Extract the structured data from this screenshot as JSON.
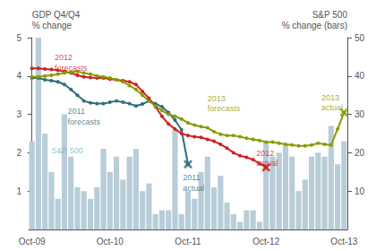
{
  "chart_data": {
    "type": "line",
    "ylabel": "GDP Q4/Q4\n% change",
    "y2label": "S&P 500\n% change (bars)",
    "categories": [
      "Oct-09",
      null,
      null,
      null,
      null,
      null,
      null,
      null,
      null,
      null,
      null,
      null,
      "Oct-10",
      null,
      null,
      null,
      null,
      null,
      null,
      null,
      null,
      null,
      null,
      null,
      "Oct-11",
      null,
      null,
      null,
      null,
      null,
      null,
      null,
      null,
      null,
      null,
      null,
      "Oct-12",
      null,
      null,
      null,
      null,
      null,
      null,
      null,
      null,
      null,
      null,
      null,
      "Oct-13"
    ],
    "ylim": [
      0,
      5
    ],
    "yticks": [
      1,
      2,
      3,
      4,
      5
    ],
    "y2lim": [
      0,
      50
    ],
    "y2ticks": [
      10,
      20,
      30,
      40,
      50
    ],
    "grid": false,
    "series": [
      {
        "type": "bar",
        "axis": "y2",
        "color": "#b8cdd8",
        "values": [
          23,
          50,
          25,
          15,
          8,
          30,
          19,
          11,
          10,
          8,
          11,
          21,
          15,
          19,
          13,
          19,
          21,
          10,
          12,
          4,
          5,
          5,
          26,
          4,
          10,
          8,
          15,
          19,
          11,
          14,
          7,
          4,
          2,
          5,
          5,
          2,
          23,
          19,
          20,
          22,
          19,
          10,
          13,
          19,
          20,
          19,
          27,
          17,
          23
        ]
      },
      {
        "type": "line",
        "marker": "o",
        "color": "#2e6e7e",
        "values": [
          3.95,
          3.95,
          3.9,
          3.88,
          3.85,
          3.78,
          3.65,
          3.5,
          3.35,
          3.3,
          3.28,
          3.28,
          3.32,
          3.35,
          3.32,
          3.28,
          3.22,
          3.27,
          3.35,
          3.28,
          3.2,
          3.05,
          2.85,
          2.6,
          1.7,
          null,
          null,
          null,
          null,
          null,
          null,
          null,
          null,
          null,
          null,
          null,
          null,
          null,
          null,
          null,
          null,
          null,
          null,
          null,
          null,
          null,
          null,
          null,
          null
        ]
      },
      {
        "type": "line",
        "marker": "o",
        "color": "#cc2222",
        "values": [
          4.2,
          4.2,
          4.18,
          4.17,
          4.15,
          4.12,
          4.08,
          4.02,
          3.98,
          3.96,
          3.95,
          3.95,
          3.92,
          3.9,
          3.88,
          3.85,
          3.78,
          3.6,
          3.42,
          3.2,
          2.95,
          2.75,
          2.62,
          2.5,
          2.45,
          2.42,
          2.4,
          2.35,
          2.3,
          2.22,
          2.12,
          2.0,
          1.92,
          1.88,
          1.82,
          1.72,
          1.62,
          null,
          null,
          null,
          null,
          null,
          null,
          null,
          null,
          null,
          null,
          null,
          null
        ]
      },
      {
        "type": "line",
        "marker": "o",
        "color": "#8a9a00",
        "values": [
          3.98,
          3.98,
          4.0,
          4.02,
          4.05,
          4.08,
          4.1,
          4.12,
          4.08,
          4.05,
          4.0,
          3.98,
          3.95,
          3.9,
          3.85,
          3.75,
          3.65,
          3.5,
          3.35,
          3.22,
          3.1,
          3.0,
          2.95,
          2.88,
          2.78,
          2.72,
          2.68,
          2.65,
          2.55,
          2.48,
          2.45,
          2.45,
          2.42,
          2.38,
          2.35,
          2.32,
          2.28,
          2.28,
          2.25,
          2.22,
          2.2,
          2.18,
          2.18,
          2.2,
          2.25,
          2.22,
          2.2,
          2.62,
          3.05
        ]
      },
      {
        "type": "scatter",
        "marker": "x",
        "color": "#2e6e7e",
        "values": [
          null,
          null,
          null,
          null,
          null,
          null,
          null,
          null,
          null,
          null,
          null,
          null,
          null,
          null,
          null,
          null,
          null,
          null,
          null,
          null,
          null,
          null,
          null,
          null,
          1.7,
          null,
          null,
          null,
          null,
          null,
          null,
          null,
          null,
          null,
          null,
          null,
          null,
          null,
          null,
          null,
          null,
          null,
          null,
          null,
          null,
          null,
          null,
          null,
          null
        ]
      },
      {
        "type": "scatter",
        "marker": "x",
        "color": "#cc2222",
        "values": [
          null,
          null,
          null,
          null,
          null,
          null,
          null,
          null,
          null,
          null,
          null,
          null,
          null,
          null,
          null,
          null,
          null,
          null,
          null,
          null,
          null,
          null,
          null,
          null,
          null,
          null,
          null,
          null,
          null,
          null,
          null,
          null,
          null,
          null,
          null,
          null,
          1.62,
          null,
          null,
          null,
          null,
          null,
          null,
          null,
          null,
          null,
          null,
          null,
          null
        ]
      },
      {
        "type": "scatter",
        "marker": "x",
        "color": "#8a9a00",
        "values": [
          null,
          null,
          null,
          null,
          null,
          null,
          null,
          null,
          null,
          null,
          null,
          null,
          null,
          null,
          null,
          null,
          null,
          null,
          null,
          null,
          null,
          null,
          null,
          null,
          null,
          null,
          null,
          null,
          null,
          null,
          null,
          null,
          null,
          null,
          null,
          null,
          null,
          null,
          null,
          null,
          null,
          null,
          null,
          null,
          null,
          null,
          null,
          null,
          3.05
        ]
      }
    ],
    "annotations": [
      {
        "text": "2012",
        "x": 3.5,
        "y": 4.58,
        "color": "#cc2222"
      },
      {
        "text": "forecasts",
        "x": 3.5,
        "y": 4.32,
        "color": "#cc2222"
      },
      {
        "text": "2011",
        "x": 5.5,
        "y": 3.18,
        "color": "#2e6e7e"
      },
      {
        "text": "forecasts",
        "x": 5.5,
        "y": 2.92,
        "color": "#2e6e7e"
      },
      {
        "text": "2013",
        "x": 27,
        "y": 3.52,
        "color": "#8a9a00"
      },
      {
        "text": "forecasts",
        "x": 27,
        "y": 3.26,
        "color": "#8a9a00"
      },
      {
        "text": "S&P 500",
        "x": 3,
        "y": 2.15,
        "color": "#7ab0c0"
      },
      {
        "text": "2011",
        "x": 23.2,
        "y": 1.45,
        "color": "#2e6e7e"
      },
      {
        "text": "actual",
        "x": 23.2,
        "y": 1.19,
        "color": "#2e6e7e"
      },
      {
        "text": "2012",
        "x": 34.5,
        "y": 2.1,
        "color": "#cc2222"
      },
      {
        "text": "actual",
        "x": 34.5,
        "y": 1.84,
        "color": "#cc2222"
      },
      {
        "text": "2013",
        "x": 44.5,
        "y": 3.55,
        "color": "#8a9a00"
      },
      {
        "text": "actual",
        "x": 44.5,
        "y": 3.29,
        "color": "#8a9a00"
      }
    ]
  }
}
